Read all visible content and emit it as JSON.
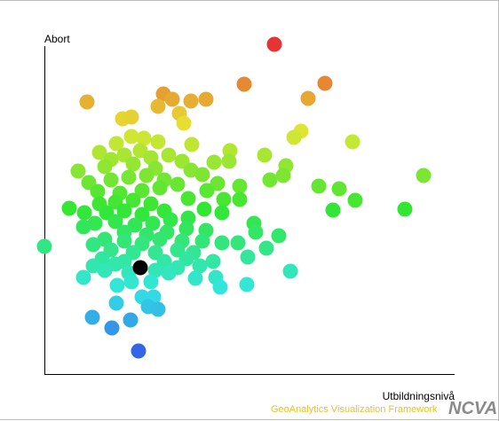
{
  "chart_data": {
    "type": "scatter",
    "x_label": "Utbildningsnivå",
    "y_label": "Abort",
    "xlim": [
      0,
      462
    ],
    "ylim": [
      0,
      372
    ],
    "colormap": "rainbow",
    "series": [
      {
        "color": "rainbow",
        "x": [
          259,
          225,
          316,
          297,
          48,
          134,
          144,
          165,
          182,
          128,
          88,
          98,
          152,
          157,
          289,
          281,
          347,
          81,
          98,
          112,
          128,
          166,
          209,
          248,
          62,
          75,
          90,
          108,
          120,
          140,
          155,
          191,
          208,
          272,
          38,
          68,
          100,
          125,
          165,
          178,
          254,
          269,
          427,
          50,
          75,
          95,
          115,
          135,
          150,
          195,
          220,
          309,
          332,
          60,
          85,
          110,
          130,
          183,
          350,
          28,
          62,
          80,
          100,
          120,
          162,
          202,
          220,
          325,
          406,
          45,
          70,
          90,
          110,
          135,
          180,
          200,
          57,
          80,
          102,
          122,
          142,
          162,
          236,
          44,
          90,
          115,
          138,
          160,
          182,
          238,
          68,
          90,
          110,
          130,
          155,
          178,
          200,
          218,
          264,
          0,
          55,
          75,
          100,
          125,
          150,
          168,
          250,
          65,
          90,
          135,
          160,
          190,
          229,
          55,
          80,
          125,
          150,
          175,
          68,
          44,
          95,
          140,
          170,
          193,
          277,
          82,
          98,
          120,
          198,
          228,
          110,
          123,
          81,
          117,
          128,
          54,
          97,
          76,
          106
        ],
        "y": [
          372,
          327,
          328,
          311,
          307,
          316,
          310,
          308,
          310,
          302,
          288,
          290,
          294,
          283,
          274,
          267,
          262,
          260,
          268,
          266,
          262,
          259,
          252,
          247,
          250,
          242,
          247,
          252,
          244,
          247,
          240,
          239,
          240,
          235,
          229,
          234,
          237,
          232,
          230,
          225,
          219,
          224,
          224,
          216,
          219,
          222,
          224,
          219,
          214,
          215,
          212,
          212,
          209,
          206,
          204,
          207,
          210,
          207,
          196,
          187,
          192,
          194,
          196,
          192,
          198,
          197,
          197,
          185,
          186,
          182,
          182,
          184,
          180,
          184,
          186,
          182,
          170,
          172,
          168,
          170,
          174,
          176,
          170,
          166,
          160,
          157,
          160,
          164,
          162,
          160,
          152,
          150,
          147,
          152,
          150,
          150,
          148,
          148,
          156,
          144,
          146,
          140,
          137,
          137,
          140,
          137,
          142,
          130,
          127,
          127,
          130,
          127,
          132,
          122,
          124,
          117,
          120,
          122,
          117,
          109,
          114,
          114,
          108,
          109,
          116,
          100,
          104,
          104,
          98,
          101,
          87,
          87,
          80,
          76,
          73,
          64,
          61,
          52,
          26
        ]
      },
      {
        "color": "#000000",
        "x": [
          108
        ],
        "y": [
          120
        ]
      }
    ]
  },
  "footer": {
    "text": "GeoAnalytics Visualization Framework",
    "logo": "NCVA"
  }
}
